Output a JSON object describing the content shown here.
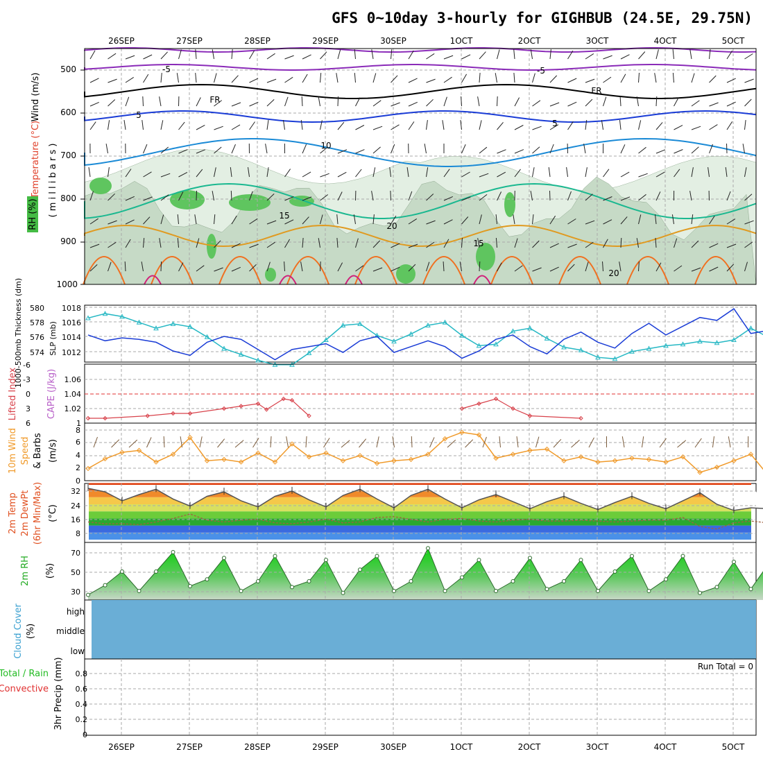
{
  "title": "GFS 0~10day 3-hourly for GIGHBUB (24.5E, 29.75N)",
  "date_ticks": [
    "26SEP",
    "27SEP",
    "28SEP",
    "29SEP",
    "30SEP",
    "1OCT",
    "2OCT",
    "3OCT",
    "4OCT",
    "5OCT"
  ],
  "colors": {
    "rh_green": "#5fc55f",
    "rh_light": "#e3efe3",
    "rh_mid": "#c6dac6",
    "slp": "#1a3cd6",
    "thickness": "#26b8c4",
    "lifted": "#d8414a",
    "wind10m": "#f09a2a",
    "cloud": "#6aaed6",
    "rh2m": "#22cc22"
  },
  "panels": {
    "upper": {
      "ylabel_wind": "Wind (m/s)",
      "ylabel_temp": "Temperature (°C)",
      "ylabel_rh": "RH (%)",
      "ylabel_pressure": "( m i l l i b a r s )",
      "yticks": [
        "500",
        "600",
        "700",
        "800",
        "900",
        "1000"
      ]
    },
    "slp": {
      "ylabel_thick": "1000-500mb Thickness (dm)",
      "ylabel_slp": "SLP (mb)",
      "left_ticks": [
        "580",
        "578",
        "576",
        "574"
      ],
      "right_ticks": [
        "1018",
        "1016",
        "1014",
        "1012"
      ]
    },
    "cape": {
      "ylabel_li": "Lifted Index",
      "ylabel_cape": "CAPE (J/kg)",
      "left_ticks": [
        "-6",
        "-3",
        "0",
        "3",
        "6"
      ],
      "right_ticks": [
        "1.06",
        "1.04",
        "1.02",
        "1"
      ]
    },
    "wind10": {
      "ylabel1": "10m Wind",
      "ylabel2": "Speed",
      "ylabel3": "& Barbs",
      "unit": "(m/s)",
      "yticks": [
        "8",
        "6",
        "4",
        "2",
        "0"
      ]
    },
    "temp": {
      "ylabel1": "2m Temp",
      "ylabel2": "2m DewPt",
      "ylabel3": "(6hr Min/Max)",
      "unit": "(°C)",
      "yticks": [
        "32",
        "24",
        "16",
        "8"
      ]
    },
    "rh": {
      "ylabel": "2m RH",
      "unit": "(%)",
      "yticks": [
        "70",
        "50",
        "30"
      ]
    },
    "cloud": {
      "ylabel": "Cloud Cover",
      "unit": "(%)",
      "levels": [
        "high",
        "middle",
        "low"
      ]
    },
    "precip": {
      "ylabel1": "Total / Rain",
      "ylabel2": "Convective",
      "ylabel3": "3hr Precip (mm)",
      "yticks": [
        "0.8",
        "0.6",
        "0.4",
        "0.2",
        "0"
      ],
      "run_total": "Run Total = 0"
    }
  },
  "chart_data": [
    {
      "type": "line",
      "name": "SLP",
      "ylabel": "SLP (mb)",
      "ylim": [
        1010,
        1019
      ],
      "x_count": 41,
      "values": [
        1014.2,
        1013.4,
        1013.8,
        1013.6,
        1013.2,
        1012.0,
        1011.4,
        1013.2,
        1014.0,
        1013.6,
        1012.2,
        1010.8,
        1012.2,
        1012.6,
        1013.0,
        1011.8,
        1013.4,
        1014.0,
        1011.8,
        1012.6,
        1013.4,
        1012.6,
        1011.0,
        1012.0,
        1013.6,
        1014.2,
        1012.6,
        1011.6,
        1013.6,
        1014.6,
        1013.2,
        1012.4,
        1014.4,
        1015.8,
        1014.2,
        1015.4,
        1016.6,
        1016.2,
        1017.8,
        1014.4,
        1014.8
      ]
    },
    {
      "type": "line",
      "name": "1000-500mb Thickness",
      "ylabel": "Thickness (dm)",
      "ylim": [
        572,
        581
      ],
      "x_count": 41,
      "values": [
        579.0,
        579.6,
        579.2,
        578.4,
        577.6,
        578.2,
        577.8,
        576.4,
        574.8,
        574.0,
        573.2,
        572.6,
        572.6,
        574.2,
        576.0,
        578.0,
        578.2,
        576.6,
        575.8,
        576.8,
        578.0,
        578.4,
        576.6,
        575.2,
        575.4,
        577.2,
        577.6,
        576.2,
        575.0,
        574.6,
        573.6,
        573.4,
        574.4,
        574.8,
        575.2,
        575.4,
        575.8,
        575.6,
        576.0,
        577.6,
        576.4
      ]
    },
    {
      "type": "line",
      "name": "Lifted Index",
      "ylabel": "Lifted Index",
      "ylim": [
        6,
        -6
      ],
      "points": [
        {
          "x": 0,
          "y": 5
        },
        {
          "x": 1,
          "y": 5
        },
        {
          "x": 3.5,
          "y": 4.5
        },
        {
          "x": 5,
          "y": 4
        },
        {
          "x": 6,
          "y": 4
        },
        {
          "x": 8,
          "y": 3
        },
        {
          "x": 9,
          "y": 2.5
        },
        {
          "x": 10,
          "y": 2
        },
        {
          "x": 10.5,
          "y": 3.2
        },
        {
          "x": 11.5,
          "y": 1
        },
        {
          "x": 12,
          "y": 1.3
        },
        {
          "x": 13,
          "y": 4.5
        },
        {
          "x": 22,
          "y": 3
        },
        {
          "x": 23,
          "y": 2
        },
        {
          "x": 24,
          "y": 1
        },
        {
          "x": 25,
          "y": 3
        },
        {
          "x": 26,
          "y": 4.5
        },
        {
          "x": 29,
          "y": 5
        }
      ]
    },
    {
      "type": "line",
      "name": "10m Wind Speed",
      "ylabel": "(m/s)",
      "ylim": [
        0,
        8
      ],
      "x_count": 41,
      "values": [
        2.0,
        3.5,
        4.5,
        4.8,
        3.0,
        4.2,
        6.8,
        3.2,
        3.4,
        3.0,
        4.4,
        3.0,
        5.8,
        3.8,
        4.4,
        3.2,
        4.0,
        2.8,
        3.2,
        3.4,
        4.2,
        6.6,
        7.6,
        7.2,
        3.6,
        4.2,
        4.8,
        5.0,
        3.2,
        3.8,
        3.0,
        3.2,
        3.6,
        3.4,
        3.0,
        3.8,
        1.4,
        2.2,
        3.2,
        4.2,
        1.0
      ]
    },
    {
      "type": "area",
      "name": "2m Temp",
      "ylabel": "(°C)",
      "ylim": [
        4,
        36
      ],
      "x_count": 41,
      "values": [
        33.0,
        31.0,
        26.0,
        29.5,
        32.5,
        27.0,
        23.0,
        28.5,
        31.0,
        26.0,
        22.5,
        28.5,
        31.5,
        26.5,
        22.5,
        29.0,
        32.5,
        27.0,
        22.0,
        29.0,
        32.5,
        27.0,
        22.0,
        26.5,
        29.5,
        25.5,
        21.5,
        25.5,
        28.5,
        24.5,
        21.0,
        25.0,
        28.5,
        24.5,
        21.5,
        26.0,
        30.5,
        24.0,
        20.5,
        22.0,
        21.5
      ]
    },
    {
      "type": "line",
      "name": "2m DewPt",
      "ylabel": "(°C)",
      "ylim": [
        4,
        36
      ],
      "x_count": 41,
      "values": [
        14.0,
        13.0,
        13.0,
        12.5,
        14.0,
        16.0,
        18.5,
        15.0,
        14.0,
        15.0,
        15.5,
        13.5,
        13.0,
        14.0,
        15.5,
        13.5,
        14.0,
        16.5,
        17.0,
        15.5,
        14.0,
        15.5,
        16.0,
        14.5,
        14.0,
        15.0,
        15.5,
        14.5,
        14.5,
        15.0,
        14.5,
        14.0,
        14.5,
        15.0,
        15.0,
        16.5,
        11.5,
        10.0,
        13.5,
        14.5,
        13.5
      ]
    },
    {
      "type": "area",
      "name": "2m RH",
      "ylabel": "(%)",
      "ylim": [
        20,
        80
      ],
      "x_count": 41,
      "values": [
        26,
        36,
        50,
        30,
        50,
        70,
        35,
        42,
        64,
        30,
        40,
        66,
        34,
        40,
        62,
        28,
        52,
        66,
        30,
        40,
        74,
        30,
        44,
        62,
        30,
        40,
        64,
        32,
        40,
        62,
        30,
        50,
        66,
        30,
        42,
        66,
        28,
        34,
        60,
        32,
        57
      ]
    }
  ]
}
